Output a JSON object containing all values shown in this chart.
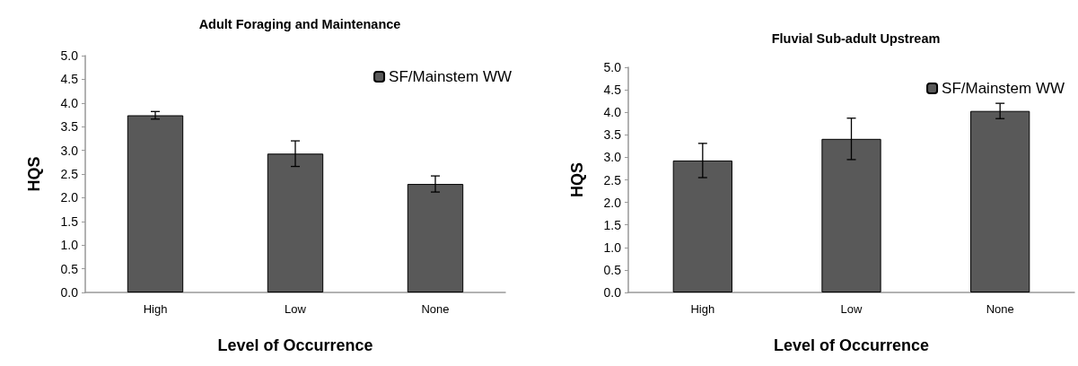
{
  "chart_data": [
    {
      "type": "bar",
      "title": "Adult Foraging and Maintenance",
      "xlabel": "Level of Occurrence",
      "ylabel": "HQS",
      "categories": [
        "High",
        "Low",
        "None"
      ],
      "series": [
        {
          "name": "SF/Mainstem WW",
          "color": "#595959",
          "values": [
            3.74,
            2.93,
            2.29
          ],
          "errors": [
            0.08,
            0.27,
            0.17
          ]
        }
      ],
      "ylim": [
        0,
        5
      ],
      "yticks": [
        {
          "value": 0,
          "label": "0.0"
        },
        {
          "value": 0.5,
          "label": "0.5"
        },
        {
          "value": 1,
          "label": "1.0"
        },
        {
          "value": 1.5,
          "label": "1.5"
        },
        {
          "value": 2,
          "label": "2.0"
        },
        {
          "value": 2.5,
          "label": "2.5"
        },
        {
          "value": 3,
          "label": "3.0"
        },
        {
          "value": 3.5,
          "label": "3.5"
        },
        {
          "value": 4,
          "label": "4.0"
        },
        {
          "value": 4.5,
          "label": "4.5"
        },
        {
          "value": 5,
          "label": "5.0"
        }
      ],
      "legend": "top right"
    },
    {
      "type": "bar",
      "title": "Fluvial Sub-adult Upstream",
      "xlabel": "Level of Occurrence",
      "ylabel": "HQS",
      "categories": [
        "High",
        "Low",
        "None"
      ],
      "series": [
        {
          "name": "SF/Mainstem WW",
          "color": "#595959",
          "values": [
            2.93,
            3.41,
            4.03
          ],
          "errors": [
            0.38,
            0.46,
            0.17
          ]
        }
      ],
      "ylim": [
        0,
        5
      ],
      "yticks": [
        {
          "value": 0,
          "label": "0.0"
        },
        {
          "value": 0.5,
          "label": "0.5"
        },
        {
          "value": 1,
          "label": "1.0"
        },
        {
          "value": 1.5,
          "label": "1.5"
        },
        {
          "value": 2,
          "label": "2.0"
        },
        {
          "value": 2.5,
          "label": "2.5"
        },
        {
          "value": 3,
          "label": "3.0"
        },
        {
          "value": 3.5,
          "label": "3.5"
        },
        {
          "value": 4,
          "label": "4.0"
        },
        {
          "value": 4.5,
          "label": "4.5"
        },
        {
          "value": 5,
          "label": "5.0"
        }
      ],
      "legend": "top right"
    }
  ]
}
